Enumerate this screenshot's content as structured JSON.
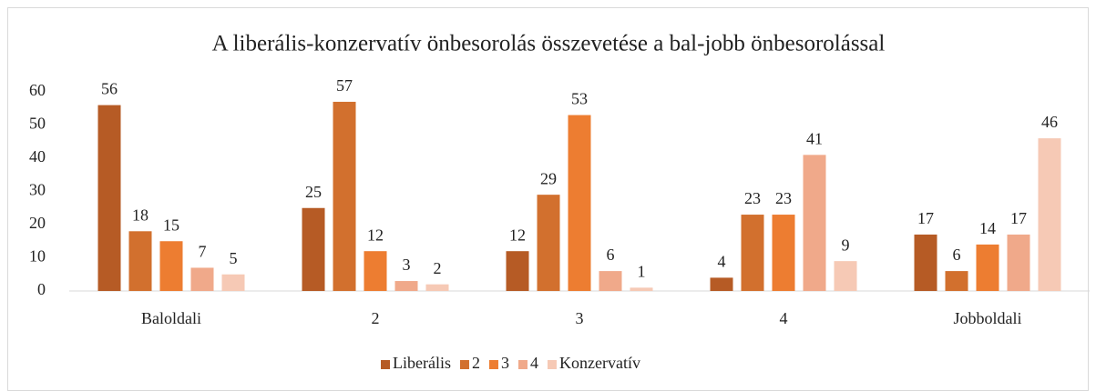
{
  "chart_data": {
    "type": "bar",
    "title": "A liberális-konzervatív önbesorolás összevetése a bal-jobb önbesorolással",
    "categories": [
      "Baloldali",
      "2",
      "3",
      "4",
      "Jobboldali"
    ],
    "series": [
      {
        "name": "Liberális",
        "color": "#b65b25",
        "values": [
          56,
          25,
          12,
          4,
          17
        ]
      },
      {
        "name": "2",
        "color": "#d2702e",
        "values": [
          18,
          57,
          29,
          23,
          6
        ]
      },
      {
        "name": "3",
        "color": "#ed7d31",
        "values": [
          15,
          12,
          53,
          23,
          14
        ]
      },
      {
        "name": "4",
        "color": "#f0a98a",
        "values": [
          7,
          3,
          6,
          41,
          17
        ]
      },
      {
        "name": "Konzervatív",
        "color": "#f6c9b5",
        "values": [
          5,
          2,
          1,
          9,
          46
        ]
      }
    ],
    "ylim": [
      0,
      60
    ],
    "yticks": [
      0,
      10,
      20,
      30,
      40,
      50,
      60
    ],
    "grid": false,
    "legend": "bottom"
  }
}
